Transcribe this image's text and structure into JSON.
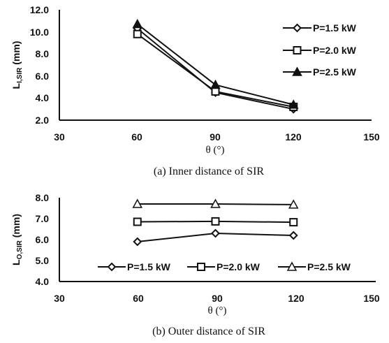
{
  "chart_data": [
    {
      "type": "line",
      "caption": "(a) Inner distance of SIR",
      "xlabel": "θ (°)",
      "ylabel_main": "L",
      "ylabel_sub": "I,SIR",
      "ylabel_unit": " (mm)",
      "x": [
        60,
        90,
        120
      ],
      "xlim": [
        30,
        150
      ],
      "ylim": [
        2.0,
        12.0
      ],
      "xticks": [
        "30",
        "60",
        "90",
        "120",
        "150"
      ],
      "yticks": [
        "2.0",
        "4.0",
        "6.0",
        "8.0",
        "10.0",
        "12.0"
      ],
      "legend_position": "right",
      "series": [
        {
          "name": "P=1.5 kW",
          "marker": "diamond",
          "values": [
            10.3,
            4.5,
            3.0
          ]
        },
        {
          "name": "P=2.0 kW",
          "marker": "square",
          "values": [
            9.8,
            4.6,
            3.2
          ]
        },
        {
          "name": "P=2.5 kW",
          "marker": "triangle",
          "values": [
            10.7,
            5.2,
            3.4
          ]
        }
      ]
    },
    {
      "type": "line",
      "caption": "(b) Outer distance of SIR",
      "xlabel": "θ (°)",
      "ylabel_main": "L",
      "ylabel_sub": "O,SIR",
      "ylabel_unit": " (mm)",
      "x": [
        60,
        90,
        120
      ],
      "xlim": [
        30,
        150
      ],
      "ylim": [
        4.0,
        8.0
      ],
      "xticks": [
        "30",
        "60",
        "90",
        "120",
        "150"
      ],
      "yticks": [
        "4.0",
        "5.0",
        "6.0",
        "7.0",
        "8.0"
      ],
      "legend_position": "bottom",
      "series": [
        {
          "name": "P=1.5 kW",
          "marker": "diamond",
          "values": [
            5.9,
            6.3,
            6.2
          ]
        },
        {
          "name": "P=2.0 kW",
          "marker": "square",
          "values": [
            6.85,
            6.87,
            6.83
          ]
        },
        {
          "name": "P=2.5 kW",
          "marker": "triangle",
          "values": [
            7.7,
            7.7,
            7.67
          ]
        }
      ]
    }
  ]
}
